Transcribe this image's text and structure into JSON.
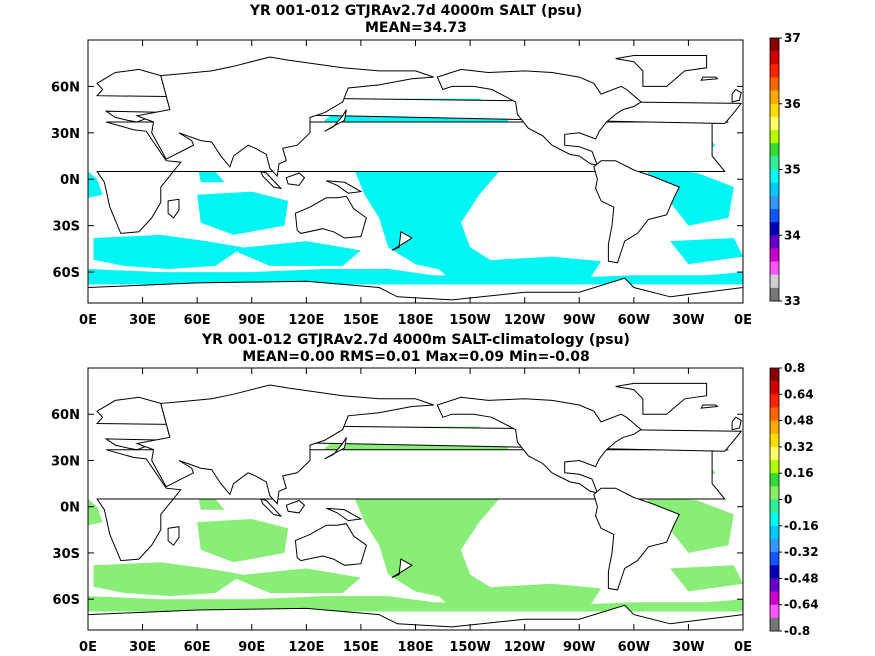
{
  "panels": [
    {
      "title": "YR 001-012 GTJRAv2.7d 4000m SALT (psu)",
      "subtitle": "MEAN=34.73",
      "lat_labels": [
        "60N",
        "30N",
        "0N",
        "30S",
        "60S"
      ],
      "lon_labels": [
        "0E",
        "30E",
        "60E",
        "90E",
        "120E",
        "150E",
        "180E",
        "150W",
        "120W",
        "90W",
        "60W",
        "30W",
        "0E"
      ],
      "colorbar_labels": [
        "37",
        "36",
        "35",
        "34",
        "33"
      ],
      "colorbar_colors": [
        "#8b0000",
        "#d40000",
        "#ff2200",
        "#ff6600",
        "#ffaa00",
        "#ffdd00",
        "#ffff66",
        "#b4ff00",
        "#33dd33",
        "#33ee99",
        "#00ffee",
        "#00ccff",
        "#3399ff",
        "#1155ff",
        "#0000bb",
        "#6600cc",
        "#cc00cc",
        "#ff55ff",
        "#cfcfcf",
        "#777777"
      ],
      "field_fill": "#00f5f5"
    },
    {
      "title": "YR 001-012 GTJRAv2.7d 4000m SALT-climatology (psu)",
      "subtitle": "MEAN=0.00   RMS=0.01   Max=0.09   Min=-0.08",
      "lat_labels": [
        "60N",
        "30N",
        "0N",
        "30S",
        "60S"
      ],
      "lon_labels": [
        "0E",
        "30E",
        "60E",
        "90E",
        "120E",
        "150E",
        "180E",
        "150W",
        "120W",
        "90W",
        "60W",
        "30W",
        "0E"
      ],
      "colorbar_labels": [
        "0.8",
        "0.64",
        "0.48",
        "0.32",
        "0.16",
        "0",
        "-0.16",
        "-0.32",
        "-0.48",
        "-0.64",
        "-0.8"
      ],
      "colorbar_colors": [
        "#8b0000",
        "#d40000",
        "#ff2200",
        "#ff6600",
        "#ffaa00",
        "#ffdd00",
        "#ffff66",
        "#b4ff00",
        "#33dd33",
        "#88ee66",
        "#33ee99",
        "#00ffee",
        "#00ccff",
        "#3399ff",
        "#1155ff",
        "#0000bb",
        "#6600cc",
        "#cc00cc",
        "#ff55ff",
        "#777777"
      ],
      "field_fill": "#88ee77"
    }
  ]
}
